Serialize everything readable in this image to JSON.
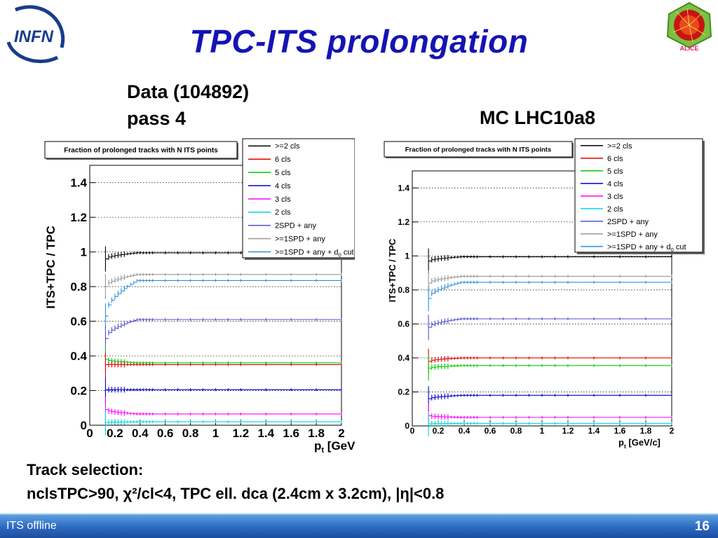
{
  "slide": {
    "title": "TPC-ITS prolongation",
    "data_line1": "Data (104892)",
    "data_line2": "pass 4",
    "mc_label": "MC LHC10a8",
    "selection_line1": "Track selection:",
    "selection_line2": "nclsTPC>90, χ²/cl<4, TPC ell. dca (2.4cm x 3.2cm), |η|<0.8",
    "footer_left": "ITS offline",
    "page_number": "16",
    "logo_left_text": "INFN",
    "logo_right_text": "ALICE"
  },
  "colors": {
    "title": "#1414b4",
    "footer": "#2b68c0",
    "series": {
      ">=2 cls": "#000000",
      "6 cls": "#e60000",
      "5 cls": "#00cc00",
      "4 cls": "#0000c8",
      "3 cls": "#ff00ff",
      "2 cls": "#00d8d8",
      "2SPD + any": "#5050d8",
      ">=1SPD + any": "#999999",
      ">=1SPD + any + d0 cut": "#2a8ee0"
    }
  },
  "chart_data": [
    {
      "type": "scatter",
      "title": "Fraction of prolonged tracks with N ITS points",
      "panel_label": "Data (104892) pass 4",
      "xlabel": "p_t [GeV/c]",
      "ylabel": "ITS+TPC / TPC",
      "xlim": [
        0,
        2
      ],
      "ylim": [
        0,
        1.5
      ],
      "xticks": [
        "0",
        "0.2",
        "0.4",
        "0.6",
        "0.8",
        "1",
        "1.2",
        "1.4",
        "1.6",
        "1.8",
        "2"
      ],
      "yticks": [
        "0",
        "0.2",
        "0.4",
        "0.6",
        "0.8",
        "1",
        "1.2",
        "1.4"
      ],
      "legend_position": "top-right",
      "series": [
        {
          "name": ">=2 cls",
          "start": 0.96,
          "plateau": 0.995
        },
        {
          "name": ">=1SPD + any",
          "start": 0.8,
          "plateau": 0.87
        },
        {
          "name": ">=1SPD + any + d0 cut",
          "start": 0.63,
          "plateau": 0.835
        },
        {
          "name": "2SPD + any",
          "start": 0.5,
          "plateau": 0.61
        },
        {
          "name": "5 cls",
          "start": 0.38,
          "plateau": 0.36
        },
        {
          "name": "6 cls",
          "start": 0.35,
          "plateau": 0.35
        },
        {
          "name": "4 cls",
          "start": 0.205,
          "plateau": 0.205
        },
        {
          "name": "3 cls",
          "start": 0.09,
          "plateau": 0.065
        },
        {
          "name": "2 cls",
          "start": 0.015,
          "plateau": 0.02
        }
      ]
    },
    {
      "type": "scatter",
      "title": "Fraction of prolonged tracks with N ITS points",
      "panel_label": "MC LHC10a8",
      "xlabel": "p_t [GeV/c]",
      "ylabel": "ITS+TPC / TPC",
      "xlim": [
        0,
        2
      ],
      "ylim": [
        0,
        1.5
      ],
      "xticks": [
        "0",
        "0.2",
        "0.4",
        "0.6",
        "0.8",
        "1",
        "1.2",
        "1.4",
        "1.6",
        "1.8",
        "2"
      ],
      "yticks": [
        "0",
        "0.2",
        "0.4",
        "0.6",
        "0.8",
        "1",
        "1.2",
        "1.4"
      ],
      "legend_position": "top-right",
      "series": [
        {
          "name": ">=2 cls",
          "start": 0.97,
          "plateau": 0.995
        },
        {
          "name": ">=1SPD + any",
          "start": 0.84,
          "plateau": 0.88
        },
        {
          "name": ">=1SPD + any + d0 cut",
          "start": 0.75,
          "plateau": 0.845
        },
        {
          "name": "2SPD + any",
          "start": 0.58,
          "plateau": 0.63
        },
        {
          "name": "6 cls",
          "start": 0.38,
          "plateau": 0.4
        },
        {
          "name": "5 cls",
          "start": 0.34,
          "plateau": 0.355
        },
        {
          "name": "4 cls",
          "start": 0.16,
          "plateau": 0.18
        },
        {
          "name": "3 cls",
          "start": 0.06,
          "plateau": 0.05
        },
        {
          "name": "2 cls",
          "start": 0.012,
          "plateau": 0.015
        }
      ]
    }
  ],
  "legend_entries": [
    ">=2 cls",
    "6 cls",
    "5 cls",
    "4 cls",
    "3 cls",
    "2 cls",
    "2SPD + any",
    ">=1SPD + any",
    ">=1SPD + any + d"
  ]
}
